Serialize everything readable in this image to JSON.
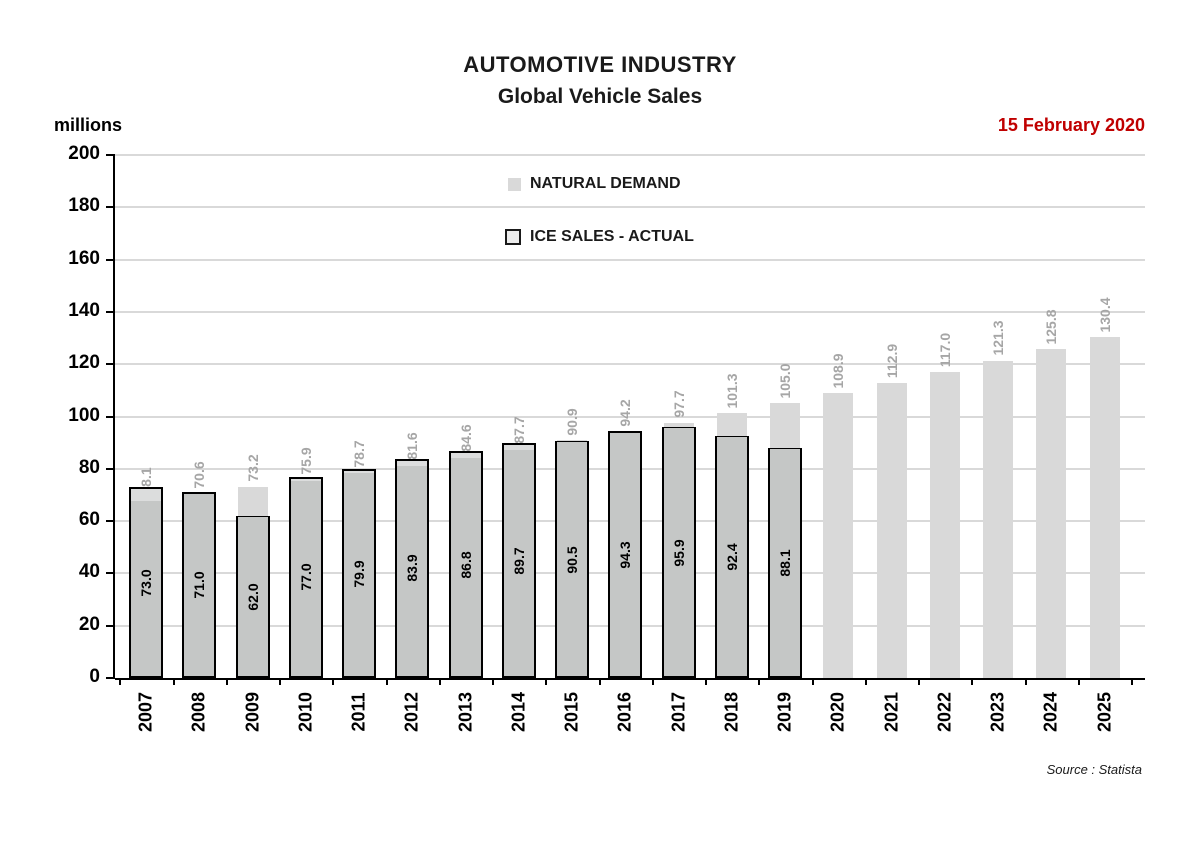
{
  "header": {
    "title": "AUTOMOTIVE INDUSTRY",
    "subtitle": "Global Vehicle Sales",
    "units_label": "millions",
    "date": "15 February 2020"
  },
  "legend": [
    {
      "label": "NATURAL DEMAND"
    },
    {
      "label": "ICE SALES - ACTUAL"
    }
  ],
  "footer": {
    "source": "Source : Statista"
  },
  "colors": {
    "natural_demand_fill": "#d9d9d9",
    "ice_fill_overlap": "#c5c7c6",
    "ice_fill_top": "#dcdddd",
    "ice_border": "#000000",
    "nd_label": "#a6a6a6",
    "ice_label": "#000000",
    "axis": "#000000",
    "gridline": "#d9d9d9",
    "date_red": "#c00000"
  },
  "chart_data": {
    "type": "bar",
    "title": "AUTOMOTIVE INDUSTRY — Global Vehicle Sales",
    "xlabel": "",
    "ylabel": "millions",
    "ylim": [
      0,
      200
    ],
    "ytick_step": 20,
    "grid": true,
    "legend_position": "top-center-inside",
    "annotations": [
      "15 February 2020"
    ],
    "source": "Source : Statista",
    "categories": [
      2007,
      2008,
      2009,
      2010,
      2011,
      2012,
      2013,
      2014,
      2015,
      2016,
      2017,
      2018,
      2019,
      2020,
      2021,
      2022,
      2023,
      2024,
      2025
    ],
    "series": [
      {
        "name": "NATURAL DEMAND",
        "values": [
          68.1,
          70.6,
          73.2,
          75.9,
          78.7,
          81.6,
          84.6,
          87.7,
          90.9,
          94.2,
          97.7,
          101.3,
          105.0,
          108.9,
          112.9,
          117.0,
          121.3,
          125.8,
          130.4
        ]
      },
      {
        "name": "ICE SALES - ACTUAL",
        "values": [
          73.0,
          71.0,
          62.0,
          77.0,
          79.9,
          83.9,
          86.8,
          89.7,
          90.5,
          94.3,
          95.9,
          92.4,
          88.1,
          null,
          null,
          null,
          null,
          null,
          null
        ]
      }
    ]
  }
}
